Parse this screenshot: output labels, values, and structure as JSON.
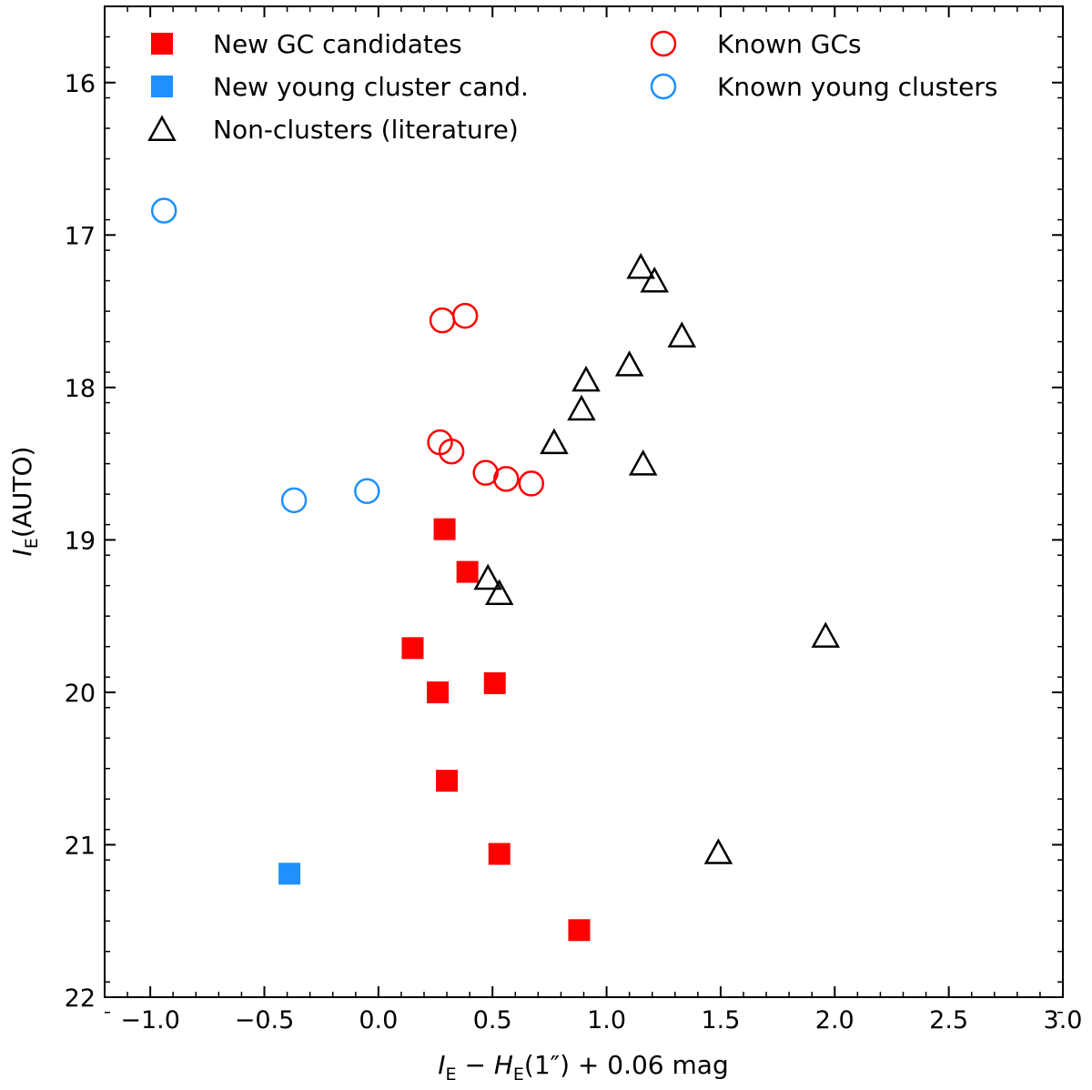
{
  "chart_data": {
    "type": "scatter",
    "title": "",
    "xlabel": {
      "main": "I",
      "sub": "E",
      "minus": " − ",
      "main2": "H",
      "sub2": "E",
      "tail": "(1″) + 0.06 mag"
    },
    "ylabel": {
      "main": "I",
      "sub": "E",
      "tail": "(AUTO)"
    },
    "xlim": [
      -1.2,
      3.0
    ],
    "ylim": [
      22.0,
      15.5
    ],
    "y_inverted": true,
    "x_ticks": [
      -1.0,
      -0.5,
      0.0,
      0.5,
      1.0,
      1.5,
      2.0,
      2.5,
      3.0
    ],
    "x_tick_labels": [
      "−1.0",
      "−0.5",
      "0.0",
      "0.5",
      "1.0",
      "1.5",
      "2.0",
      "2.5",
      "3.0"
    ],
    "y_ticks": [
      16,
      17,
      18,
      19,
      20,
      21,
      22
    ],
    "y_tick_labels": [
      "16",
      "17",
      "18",
      "19",
      "20",
      "21",
      "22"
    ],
    "legend_position": "top, two columns",
    "series": [
      {
        "name": "New GC candidates",
        "marker": "square-filled",
        "color": "#ff0000",
        "points": [
          {
            "x": 0.29,
            "y": 18.93
          },
          {
            "x": 0.39,
            "y": 19.21
          },
          {
            "x": 0.15,
            "y": 19.71
          },
          {
            "x": 0.26,
            "y": 20.0
          },
          {
            "x": 0.51,
            "y": 19.94
          },
          {
            "x": 0.3,
            "y": 20.58
          },
          {
            "x": 0.53,
            "y": 21.06
          },
          {
            "x": 0.88,
            "y": 21.56
          }
        ]
      },
      {
        "name": "New young cluster cand.",
        "marker": "square-filled",
        "color": "#1e90ff",
        "points": [
          {
            "x": -0.39,
            "y": 21.19
          }
        ]
      },
      {
        "name": "Non-clusters (literature)",
        "marker": "triangle-open",
        "color": "#000000",
        "points": [
          {
            "x": 1.15,
            "y": 17.21
          },
          {
            "x": 1.21,
            "y": 17.3
          },
          {
            "x": 1.33,
            "y": 17.66
          },
          {
            "x": 1.1,
            "y": 17.85
          },
          {
            "x": 0.91,
            "y": 17.95
          },
          {
            "x": 0.89,
            "y": 18.14
          },
          {
            "x": 0.77,
            "y": 18.36
          },
          {
            "x": 1.16,
            "y": 18.5
          },
          {
            "x": 0.48,
            "y": 19.25
          },
          {
            "x": 0.53,
            "y": 19.35
          },
          {
            "x": 1.96,
            "y": 19.63
          },
          {
            "x": 1.49,
            "y": 21.05
          }
        ]
      },
      {
        "name": "Known GCs",
        "marker": "circle-open",
        "color": "#ff0000",
        "points": [
          {
            "x": 0.28,
            "y": 17.56
          },
          {
            "x": 0.38,
            "y": 17.53
          },
          {
            "x": 0.27,
            "y": 18.36
          },
          {
            "x": 0.32,
            "y": 18.42
          },
          {
            "x": 0.47,
            "y": 18.56
          },
          {
            "x": 0.56,
            "y": 18.6
          },
          {
            "x": 0.67,
            "y": 18.63
          }
        ]
      },
      {
        "name": "Known young clusters",
        "marker": "circle-open",
        "color": "#1e90ff",
        "points": [
          {
            "x": -0.94,
            "y": 16.84
          },
          {
            "x": -0.37,
            "y": 18.74
          },
          {
            "x": -0.05,
            "y": 18.68
          }
        ]
      }
    ]
  }
}
